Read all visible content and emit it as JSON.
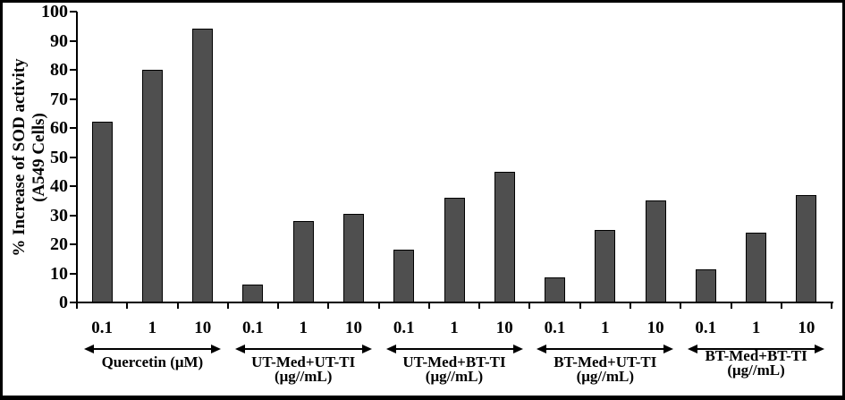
{
  "figure": {
    "background": "#ffffff",
    "frame_color": "#000000"
  },
  "chart_data": {
    "type": "bar",
    "title": "",
    "ylabel_line1": "% Increase of SOD activity",
    "ylabel_line2": "(A549 Cells)",
    "xlabel": "",
    "ylim": [
      0,
      100
    ],
    "yticks": [
      0,
      10,
      20,
      30,
      40,
      50,
      60,
      70,
      80,
      90,
      100
    ],
    "grid": "off",
    "legend": "none",
    "bar_color": "#4f4f4f",
    "bar_border_color": "#000000",
    "axis_color": "#000000",
    "groups": [
      {
        "label_line1": "Quercetin (μM)",
        "label_line2": "",
        "categories": [
          "0.1",
          "1",
          "10"
        ],
        "values": [
          62,
          80,
          94
        ]
      },
      {
        "label_line1": "UT-Med+UT-TI",
        "label_line2": "(μg//mL)",
        "categories": [
          "0.1",
          "1",
          "10"
        ],
        "values": [
          6,
          28,
          30.5
        ]
      },
      {
        "label_line1": "UT-Med+BT-TI",
        "label_line2": "(μg//mL)",
        "categories": [
          "0.1",
          "1",
          "10"
        ],
        "values": [
          18,
          36,
          45
        ]
      },
      {
        "label_line1": "BT-Med+UT-TI",
        "label_line2": "(μg//mL)",
        "categories": [
          "0.1",
          "1",
          "10"
        ],
        "values": [
          8.5,
          25,
          35
        ]
      },
      {
        "label_line1": "BT-Med+BT-TI",
        "label_line2": "(μg//mL)",
        "categories": [
          "0.1",
          "1",
          "10"
        ],
        "values": [
          11.5,
          24,
          37
        ]
      }
    ]
  }
}
